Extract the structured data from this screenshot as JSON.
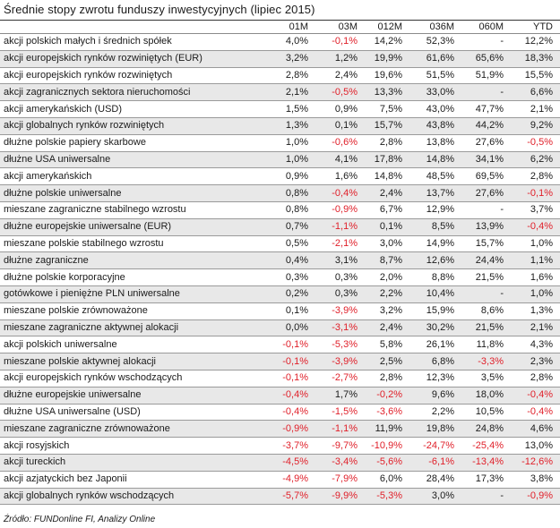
{
  "chart_data": {
    "type": "table",
    "title": "Średnie stopy zwrotu funduszy inwestycyjnych (lipiec 2015)",
    "columns": [
      "",
      "01M",
      "03M",
      "012M",
      "036M",
      "060M",
      "YTD"
    ],
    "rows": [
      {
        "name": "akcji polskich małych i średnich spółek",
        "values": [
          "4,0%",
          "-0,1%",
          "14,2%",
          "52,3%",
          "-",
          "12,2%"
        ]
      },
      {
        "name": "akcji europejskich rynków rozwiniętych (EUR)",
        "values": [
          "3,2%",
          "1,2%",
          "19,9%",
          "61,6%",
          "65,6%",
          "18,3%"
        ]
      },
      {
        "name": "akcji europejskich rynków rozwiniętych",
        "values": [
          "2,8%",
          "2,4%",
          "19,6%",
          "51,5%",
          "51,9%",
          "15,5%"
        ]
      },
      {
        "name": "akcji zagranicznych sektora nieruchomości",
        "values": [
          "2,1%",
          "-0,5%",
          "13,3%",
          "33,0%",
          "-",
          "6,6%"
        ]
      },
      {
        "name": "akcji amerykańskich (USD)",
        "values": [
          "1,5%",
          "0,9%",
          "7,5%",
          "43,0%",
          "47,7%",
          "2,1%"
        ]
      },
      {
        "name": "akcji globalnych rynków rozwiniętych",
        "values": [
          "1,3%",
          "0,1%",
          "15,7%",
          "43,8%",
          "44,2%",
          "9,2%"
        ]
      },
      {
        "name": "dłużne polskie papiery skarbowe",
        "values": [
          "1,0%",
          "-0,6%",
          "2,8%",
          "13,8%",
          "27,6%",
          "-0,5%"
        ]
      },
      {
        "name": "dłużne USA uniwersalne",
        "values": [
          "1,0%",
          "4,1%",
          "17,8%",
          "14,8%",
          "34,1%",
          "6,2%"
        ]
      },
      {
        "name": "akcji amerykańskich",
        "values": [
          "0,9%",
          "1,6%",
          "14,8%",
          "48,5%",
          "69,5%",
          "2,8%"
        ]
      },
      {
        "name": "dłużne polskie uniwersalne",
        "values": [
          "0,8%",
          "-0,4%",
          "2,4%",
          "13,7%",
          "27,6%",
          "-0,1%"
        ]
      },
      {
        "name": "mieszane zagraniczne stabilnego wzrostu",
        "values": [
          "0,8%",
          "-0,9%",
          "6,7%",
          "12,9%",
          "-",
          "3,7%"
        ]
      },
      {
        "name": "dłużne europejskie uniwersalne (EUR)",
        "values": [
          "0,7%",
          "-1,1%",
          "0,1%",
          "8,5%",
          "13,9%",
          "-0,4%"
        ]
      },
      {
        "name": "mieszane polskie stabilnego wzrostu",
        "values": [
          "0,5%",
          "-2,1%",
          "3,0%",
          "14,9%",
          "15,7%",
          "1,0%"
        ]
      },
      {
        "name": "dłużne zagraniczne",
        "values": [
          "0,4%",
          "3,1%",
          "8,7%",
          "12,6%",
          "24,4%",
          "1,1%"
        ]
      },
      {
        "name": "dłużne polskie korporacyjne",
        "values": [
          "0,3%",
          "0,3%",
          "2,0%",
          "8,8%",
          "21,5%",
          "1,6%"
        ]
      },
      {
        "name": "gotówkowe i pieniężne PLN uniwersalne",
        "values": [
          "0,2%",
          "0,3%",
          "2,2%",
          "10,4%",
          "-",
          "1,0%"
        ]
      },
      {
        "name": "mieszane polskie zrównoważone",
        "values": [
          "0,1%",
          "-3,9%",
          "3,2%",
          "15,9%",
          "8,6%",
          "1,3%"
        ]
      },
      {
        "name": "mieszane zagraniczne aktywnej alokacji",
        "values": [
          "0,0%",
          "-3,1%",
          "2,4%",
          "30,2%",
          "21,5%",
          "2,1%"
        ]
      },
      {
        "name": "akcji polskich uniwersalne",
        "values": [
          "-0,1%",
          "-5,3%",
          "5,8%",
          "26,1%",
          "11,8%",
          "4,3%"
        ]
      },
      {
        "name": "mieszane polskie aktywnej alokacji",
        "values": [
          "-0,1%",
          "-3,9%",
          "2,5%",
          "6,8%",
          "-3,3%",
          "2,3%"
        ]
      },
      {
        "name": "akcji europejskich rynków wschodzących",
        "values": [
          "-0,1%",
          "-2,7%",
          "2,8%",
          "12,3%",
          "3,5%",
          "2,8%"
        ]
      },
      {
        "name": "dłużne europejskie uniwersalne",
        "values": [
          "-0,4%",
          "1,7%",
          "-0,2%",
          "9,6%",
          "18,0%",
          "-0,4%"
        ]
      },
      {
        "name": "dłużne USA uniwersalne (USD)",
        "values": [
          "-0,4%",
          "-1,5%",
          "-3,6%",
          "2,2%",
          "10,5%",
          "-0,4%"
        ]
      },
      {
        "name": "mieszane zagraniczne zrównoważone",
        "values": [
          "-0,9%",
          "-1,1%",
          "11,9%",
          "19,8%",
          "24,8%",
          "4,6%"
        ]
      },
      {
        "name": "akcji rosyjskich",
        "values": [
          "-3,7%",
          "-9,7%",
          "-10,9%",
          "-24,7%",
          "-25,4%",
          "13,0%"
        ]
      },
      {
        "name": "akcji tureckich",
        "values": [
          "-4,5%",
          "-3,4%",
          "-5,6%",
          "-6,1%",
          "-13,4%",
          "-12,6%"
        ]
      },
      {
        "name": "akcji azjatyckich bez Japonii",
        "values": [
          "-4,9%",
          "-7,9%",
          "6,0%",
          "28,4%",
          "17,3%",
          "3,8%"
        ]
      },
      {
        "name": "akcji globalnych rynków wschodzących",
        "values": [
          "-5,7%",
          "-9,9%",
          "-5,3%",
          "3,0%",
          "-",
          "-0,9%"
        ]
      }
    ],
    "source": "Źródło: FUNDonline FI, Analizy Online",
    "negative_color": "#e0202a",
    "stripe_color": "#e8e8e8"
  }
}
